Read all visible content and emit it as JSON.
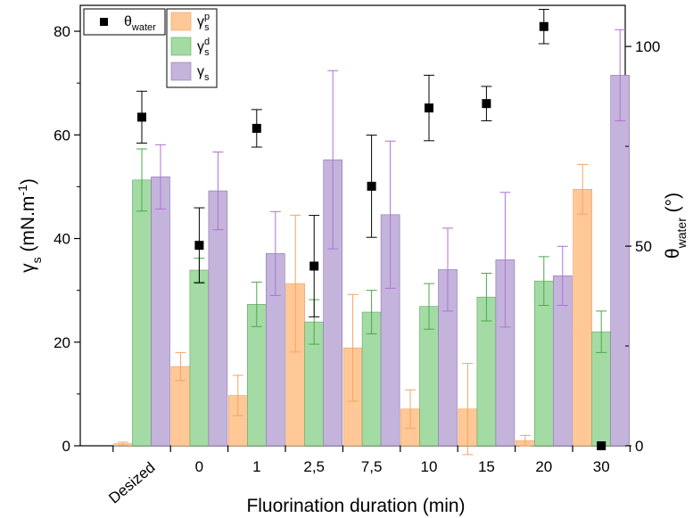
{
  "chart_data": {
    "type": "bar",
    "xlabel": "Fluorination duration (min)",
    "ylabel_main": "γ",
    "ylabel_sub": "s",
    "ylabel_rest": " (mN.m",
    "ylabel_exp": "-1",
    "ylabel_end": ")",
    "y2label_main": "θ",
    "y2label_sub": "water",
    "y2label_rest": " (°)",
    "categories": [
      "Desized",
      "0",
      "1",
      "2,5",
      "7,5",
      "10",
      "15",
      "20",
      "30"
    ],
    "ylim": [
      0,
      85
    ],
    "yticks": [
      0,
      20,
      40,
      60,
      80
    ],
    "y2lim": [
      0,
      110.3
    ],
    "y2ticks": [
      0,
      50,
      100
    ],
    "bar_series": [
      {
        "key": "gp",
        "symbol": "γ",
        "sub": "s",
        "sup": "p",
        "color": "#ffc896",
        "stroke": "#e8a060",
        "errcolor": "#f4a462",
        "values": [
          0.4,
          15.3,
          9.7,
          31.3,
          18.9,
          7.1,
          7.1,
          1.0,
          49.5
        ],
        "errors": [
          0.3,
          2.7,
          3.9,
          13.2,
          10.3,
          3.7,
          8.8,
          1.0,
          4.8
        ]
      },
      {
        "key": "gd",
        "symbol": "γ",
        "sub": "s",
        "sup": "d",
        "color": "#a4dba4",
        "stroke": "#5aa85a",
        "errcolor": "#4aa84a",
        "values": [
          51.3,
          33.9,
          27.3,
          23.9,
          25.8,
          26.9,
          28.7,
          31.8,
          22.0
        ],
        "errors": [
          6.0,
          2.3,
          4.3,
          4.3,
          4.2,
          4.4,
          4.6,
          4.7,
          4.0
        ]
      },
      {
        "key": "g",
        "symbol": "γ",
        "sub": "s",
        "sup": "",
        "color": "#c4b4dc",
        "stroke": "#8a72b0",
        "errcolor": "#b070d8",
        "values": [
          51.9,
          49.2,
          37.1,
          55.2,
          44.6,
          34.0,
          35.9,
          32.8,
          71.5
        ],
        "errors": [
          6.2,
          7.5,
          8.1,
          17.2,
          14.2,
          8.0,
          13.0,
          5.7,
          8.8
        ]
      }
    ],
    "scatter_series": {
      "symbol": "θ",
      "sub": "water",
      "color": "#000000",
      "values": [
        82.3,
        50.2,
        79.5,
        45.0,
        65.0,
        84.6,
        85.7,
        105.0,
        0.0
      ],
      "errors": [
        6.5,
        9.4,
        4.7,
        12.7,
        12.8,
        8.2,
        4.3,
        4.3,
        0.0
      ]
    },
    "legend": {
      "placement": "top-left"
    }
  }
}
